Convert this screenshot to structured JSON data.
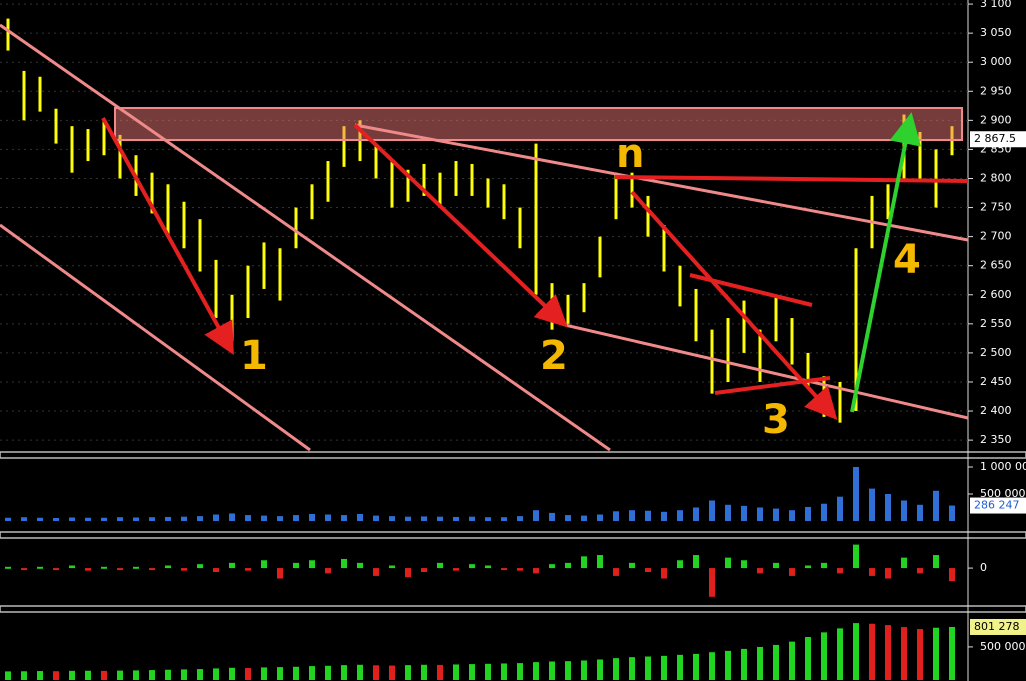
{
  "chart_data": [
    {
      "type": "ohlc",
      "color": "#ffff00",
      "grid": true,
      "ylim": [
        2333,
        3107
      ],
      "yticks": [
        {
          "value": 3100,
          "label": "3 100"
        },
        {
          "value": 3050,
          "label": "3 050"
        },
        {
          "value": 3000,
          "label": "3 000"
        },
        {
          "value": 2950,
          "label": "2 950"
        },
        {
          "value": 2900,
          "label": "2 900"
        },
        {
          "value": 2850,
          "label": "2 850"
        },
        {
          "value": 2800,
          "label": "2 800"
        },
        {
          "value": 2750,
          "label": "2 750"
        },
        {
          "value": 2700,
          "label": "2 700"
        },
        {
          "value": 2650,
          "label": "2 650"
        },
        {
          "value": 2600,
          "label": "2 600"
        },
        {
          "value": 2550,
          "label": "2 550"
        },
        {
          "value": 2500,
          "label": "2 500"
        },
        {
          "value": 2450,
          "label": "2 450"
        },
        {
          "value": 2400,
          "label": "2 400"
        },
        {
          "value": 2350,
          "label": "2 350"
        }
      ],
      "last": {
        "value": 2867.5,
        "label": "2 867.5"
      },
      "annotations": [
        "1",
        "2",
        "3",
        "4",
        "n"
      ],
      "high": [
        3075,
        2985,
        2975,
        2920,
        2890,
        2885,
        2900,
        2875,
        2840,
        2810,
        2790,
        2760,
        2730,
        2660,
        2600,
        2650,
        2690,
        2680,
        2750,
        2790,
        2830,
        2890,
        2900,
        2860,
        2830,
        2815,
        2825,
        2810,
        2830,
        2825,
        2800,
        2790,
        2750,
        2860,
        2620,
        2600,
        2620,
        2700,
        2810,
        2810,
        2770,
        2720,
        2650,
        2610,
        2540,
        2560,
        2590,
        2540,
        2600,
        2560,
        2500,
        2460,
        2450,
        2680,
        2770,
        2790,
        2910,
        2880,
        2850,
        2890
      ],
      "low": [
        3020,
        2900,
        2915,
        2860,
        2810,
        2830,
        2840,
        2800,
        2770,
        2740,
        2700,
        2680,
        2640,
        2560,
        2520,
        2560,
        2610,
        2590,
        2680,
        2730,
        2760,
        2820,
        2830,
        2800,
        2750,
        2760,
        2770,
        2750,
        2770,
        2770,
        2750,
        2730,
        2680,
        2600,
        2540,
        2550,
        2570,
        2630,
        2730,
        2750,
        2700,
        2640,
        2580,
        2520,
        2430,
        2450,
        2500,
        2450,
        2520,
        2480,
        2440,
        2390,
        2380,
        2400,
        2680,
        2730,
        2800,
        2800,
        2750,
        2840
      ]
    },
    {
      "type": "bar",
      "color": "#2f6fd6",
      "ylim": [
        -92600,
        1092600
      ],
      "yticks": [
        {
          "value": 1000000,
          "label": "1 000 000"
        },
        {
          "value": 500000,
          "label": "500 000"
        }
      ],
      "last": {
        "value": 286247,
        "label": "286 247"
      },
      "values": [
        60000,
        70000,
        60000,
        55000,
        65000,
        60000,
        60000,
        70000,
        65000,
        70000,
        75000,
        80000,
        90000,
        120000,
        140000,
        110000,
        100000,
        90000,
        110000,
        130000,
        120000,
        110000,
        130000,
        100000,
        90000,
        80000,
        85000,
        80000,
        75000,
        80000,
        70000,
        70000,
        90000,
        200000,
        150000,
        110000,
        100000,
        120000,
        180000,
        200000,
        190000,
        170000,
        200000,
        250000,
        380000,
        300000,
        280000,
        250000,
        230000,
        200000,
        260000,
        320000,
        450000,
        1000000,
        600000,
        500000,
        380000,
        300000,
        560000,
        286247
      ]
    },
    {
      "type": "signed-bar",
      "up_color": "#22d422",
      "down_color": "#e0201c",
      "ylim": [
        -1.3,
        1
      ],
      "yticks": [
        0
      ],
      "values": [
        0.05,
        -0.05,
        0.05,
        -0.05,
        0.1,
        -0.1,
        0.05,
        -0.05,
        0.05,
        -0.05,
        0.1,
        -0.1,
        0.15,
        -0.15,
        0.2,
        -0.1,
        0.3,
        -0.4,
        0.2,
        0.3,
        -0.2,
        0.35,
        0.2,
        -0.3,
        0.1,
        -0.35,
        -0.15,
        0.2,
        -0.1,
        0.15,
        0.1,
        -0.05,
        -0.1,
        -0.2,
        0.15,
        0.2,
        0.45,
        0.5,
        -0.3,
        0.2,
        -0.15,
        -0.4,
        0.3,
        0.5,
        -1.1,
        0.4,
        0.3,
        -0.2,
        0.2,
        -0.3,
        0.1,
        0.2,
        -0.2,
        0.9,
        -0.3,
        -0.4,
        0.4,
        -0.2,
        0.5,
        -0.5
      ]
    },
    {
      "type": "trend-bar",
      "up_color": "#22d422",
      "down_color": "#e0201c",
      "ylim": [
        0,
        937000
      ],
      "yticks": [
        {
          "value": 500000,
          "label": "500 000"
        }
      ],
      "last": {
        "value": 801278,
        "label": "801 278"
      },
      "values": [
        130000,
        132000,
        135000,
        133000,
        138000,
        140000,
        138000,
        142000,
        145000,
        150000,
        155000,
        160000,
        165000,
        175000,
        185000,
        180000,
        190000,
        195000,
        200000,
        210000,
        215000,
        225000,
        230000,
        222000,
        218000,
        225000,
        230000,
        228000,
        235000,
        240000,
        245000,
        250000,
        255000,
        270000,
        280000,
        285000,
        295000,
        310000,
        330000,
        345000,
        355000,
        365000,
        380000,
        395000,
        420000,
        440000,
        470000,
        500000,
        530000,
        580000,
        650000,
        720000,
        780000,
        860000,
        850000,
        830000,
        800000,
        770000,
        790000,
        801278
      ]
    }
  ]
}
